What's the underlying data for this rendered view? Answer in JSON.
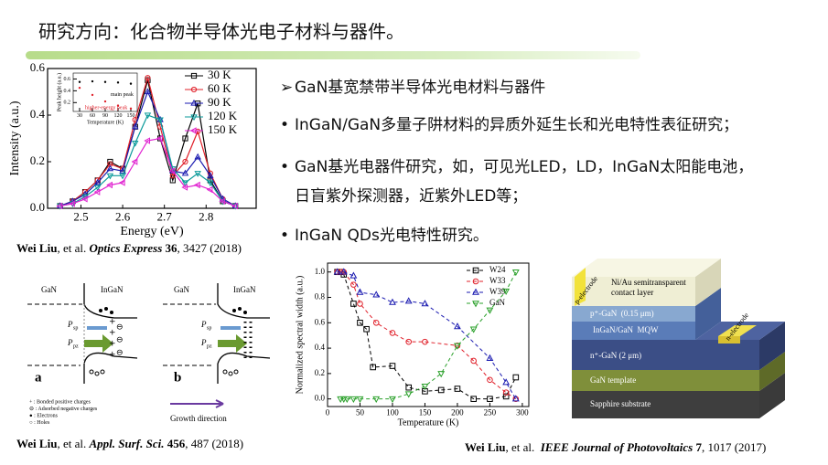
{
  "title": "研究方向：化合物半导体光电子材料与器件。",
  "bullets": [
    {
      "marker": "➢",
      "lines": [
        "GaN基宽禁带半导体光电材料与器件"
      ]
    },
    {
      "marker": "•",
      "lines": [
        "InGaN/GaN多量子阱材料的异质外延生长和光电特性表征研究；"
      ]
    },
    {
      "marker": "•",
      "lines": [
        "GaN基光电器件研究，如，可见光LED，LD，InGaN太阳能电池，",
        "日盲紫外探测器，近紫外LED等；"
      ]
    },
    {
      "marker": "•",
      "lines": [
        "InGaN QDs光电特性研究。"
      ]
    }
  ],
  "citations": [
    {
      "author": "Wei Liu",
      "etal": ", et al. ",
      "journal": "Optics Express",
      "volume": " 36",
      "rest": ", 3427 (2018)"
    },
    {
      "author": "Wei Liu",
      "etal": ", et al. ",
      "journal": "Appl. Surf. Sci.",
      "volume": " 456",
      "rest": ", 487 (2018)"
    },
    {
      "author": "Wei Liu",
      "etal": ", et al.  ",
      "journal": "IEEE Journal of Photovoltaics",
      "volume": " 7",
      "rest": ", 1017 (2017)"
    }
  ],
  "band_diagram": {
    "panels": [
      {
        "left": "GaN",
        "right": "InGaN",
        "tag": "a"
      },
      {
        "left": "GaN",
        "right": "InGaN",
        "tag": "b"
      }
    ],
    "p_symbol": "P",
    "sp": "sp",
    "pz": "pz",
    "key": [
      "+ : Bonded positive charges",
      "⊖ : Adsorbed negative charges",
      "● : Electrons",
      "○ : Holes"
    ],
    "growth": "Growth direction"
  },
  "device": {
    "p_electrode": "p-electrode",
    "contact": [
      "Ni/Au semitransparent",
      "contact layer"
    ],
    "p_gan": "p⁺-GaN  (0.15 μm)",
    "mqw": "InGaN/GaN  MQW",
    "n_electrode": "n-electrode",
    "n_gan": "n⁺-GaN (2 μm)",
    "template": "GaN template",
    "substrate": "Sapphire substrate"
  },
  "chart_data": [
    {
      "type": "line",
      "xlabel": "Energy (eV)",
      "ylabel": "Intensity (a.u.)",
      "xlim": [
        2.42,
        2.92
      ],
      "xticks": [
        2.5,
        2.6,
        2.7,
        2.8
      ],
      "ylim": [
        0,
        0.6
      ],
      "yticks": [
        {
          "value": 0,
          "label": "0.0"
        },
        {
          "value": 0.2,
          "label": "0.2"
        },
        {
          "value": 0.4,
          "label": "0.4"
        },
        {
          "value": 0.6,
          "label": "0.6"
        }
      ],
      "legend": "upper right",
      "x": [
        2.45,
        2.48,
        2.51,
        2.54,
        2.57,
        2.6,
        2.63,
        2.66,
        2.69,
        2.72,
        2.75,
        2.78,
        2.81,
        2.84,
        2.87
      ],
      "series": [
        {
          "name": "30 K",
          "color": "#000000",
          "marker": "square",
          "values": [
            0.01,
            0.03,
            0.07,
            0.12,
            0.2,
            0.17,
            0.35,
            0.55,
            0.3,
            0.12,
            0.3,
            0.45,
            0.12,
            0.03,
            0.01
          ]
        },
        {
          "name": "60 K",
          "color": "#e0202a",
          "marker": "circle",
          "values": [
            0.01,
            0.03,
            0.07,
            0.12,
            0.19,
            0.17,
            0.38,
            0.56,
            0.35,
            0.14,
            0.2,
            0.33,
            0.15,
            0.04,
            0.01
          ]
        },
        {
          "name": "90 K",
          "color": "#1a1ab0",
          "marker": "triangle-up",
          "values": [
            0.01,
            0.03,
            0.06,
            0.11,
            0.17,
            0.16,
            0.35,
            0.5,
            0.38,
            0.16,
            0.15,
            0.22,
            0.14,
            0.04,
            0.01
          ]
        },
        {
          "name": "120 K",
          "color": "#0a9a9a",
          "marker": "triangle-down",
          "values": [
            0.01,
            0.02,
            0.05,
            0.09,
            0.14,
            0.14,
            0.28,
            0.4,
            0.38,
            0.17,
            0.11,
            0.15,
            0.11,
            0.03,
            0.01
          ]
        },
        {
          "name": "150 K",
          "color": "#e020d0",
          "marker": "triangle-left",
          "values": [
            0.01,
            0.02,
            0.04,
            0.07,
            0.1,
            0.11,
            0.2,
            0.29,
            0.3,
            0.16,
            0.09,
            0.1,
            0.08,
            0.03,
            0.01
          ]
        }
      ]
    },
    {
      "type": "scatter",
      "xlabel": "Temperature (K)",
      "ylabel": "Peak height (a.u.)",
      "xlim": [
        15,
        165
      ],
      "xticks": [
        30,
        60,
        90,
        120,
        150
      ],
      "ylim": [
        0.05,
        0.7
      ],
      "yticks": [
        0.2,
        0.4,
        0.6
      ],
      "legend": "inline",
      "x": [
        30,
        60,
        90,
        120,
        150
      ],
      "series": [
        {
          "name": "main peak",
          "color": "#000000",
          "marker": "dot",
          "values": [
            0.55,
            0.56,
            0.55,
            0.54,
            0.52
          ]
        },
        {
          "name": "higher-energy peak",
          "color": "#e0202a",
          "marker": "dot",
          "values": [
            0.45,
            0.33,
            0.22,
            0.15,
            0.1
          ]
        }
      ]
    },
    {
      "type": "line",
      "xlabel": "Temperature (K)",
      "ylabel": "Normalized spectral width (a.u.)",
      "xlim": [
        0,
        310
      ],
      "xticks": [
        0,
        50,
        100,
        150,
        200,
        250,
        300
      ],
      "ylim": [
        -0.06,
        1.07
      ],
      "yticks": [
        {
          "value": 0,
          "label": "0.0"
        },
        {
          "value": 0.2,
          "label": "0.2"
        },
        {
          "value": 0.4,
          "label": "0.4"
        },
        {
          "value": 0.6,
          "label": "0.6"
        },
        {
          "value": 0.8,
          "label": "0.8"
        },
        {
          "value": 1,
          "label": "1.0"
        }
      ],
      "legend": "upper right",
      "line_style": "dashed",
      "series": [
        {
          "name": "W24",
          "color": "#000000",
          "marker": "square",
          "x": [
            15,
            20,
            25,
            40,
            50,
            60,
            70,
            100,
            125,
            150,
            175,
            200,
            225,
            250,
            275,
            290
          ],
          "values": [
            1.0,
            1.0,
            0.98,
            0.75,
            0.6,
            0.55,
            0.25,
            0.26,
            0.09,
            0.06,
            0.07,
            0.08,
            0.0,
            0.0,
            0.02,
            0.17
          ]
        },
        {
          "name": "W33",
          "color": "#e0202a",
          "marker": "circle",
          "x": [
            15,
            20,
            25,
            40,
            50,
            75,
            100,
            125,
            150,
            200,
            225,
            250,
            275,
            290
          ],
          "values": [
            1.0,
            1.0,
            1.0,
            0.9,
            0.75,
            0.6,
            0.52,
            0.45,
            0.45,
            0.42,
            0.3,
            0.15,
            0.05,
            0.0
          ]
        },
        {
          "name": "W39",
          "color": "#1a1ab0",
          "marker": "triangle-up",
          "x": [
            15,
            25,
            40,
            50,
            75,
            100,
            125,
            150,
            200,
            250,
            275,
            290
          ],
          "values": [
            1.0,
            1.0,
            0.97,
            0.84,
            0.82,
            0.76,
            0.77,
            0.75,
            0.57,
            0.32,
            0.13,
            0.0
          ]
        },
        {
          "name": "GaN",
          "color": "#2aa02a",
          "marker": "triangle-down",
          "x": [
            20,
            25,
            30,
            40,
            50,
            75,
            100,
            125,
            150,
            175,
            200,
            225,
            250,
            275,
            290
          ],
          "values": [
            0,
            0,
            0,
            0,
            0,
            0,
            0,
            0.04,
            0.1,
            0.2,
            0.42,
            0.55,
            0.7,
            0.85,
            1.0
          ]
        }
      ]
    }
  ]
}
